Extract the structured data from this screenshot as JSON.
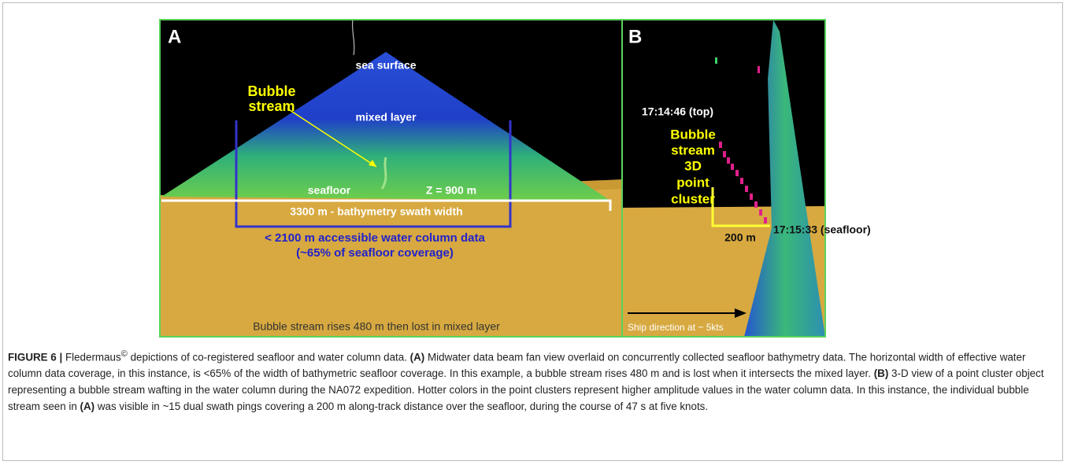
{
  "figure": {
    "panel_a": {
      "letter": "A",
      "sea_surface": "sea surface",
      "bubble_stream": [
        "Bubble",
        "stream"
      ],
      "mixed_layer": "mixed layer",
      "seafloor": "seafloor",
      "depth": "Z = 900 m",
      "swath": "3300 m - bathymetry swath width",
      "accessible": [
        "< 2100 m accessible water column data",
        "(~65% of seafloor coverage)"
      ],
      "footnote": "Bubble stream rises 480 m then lost in mixed layer"
    },
    "panel_b": {
      "letter": "B",
      "top_time": "17:14:46 (top)",
      "cluster": [
        "Bubble",
        "stream",
        "3D",
        "point",
        "cluster"
      ],
      "seafloor_time": "17:15:33 (seafloor)",
      "distance": "200 m",
      "ship": "Ship direction at ~ 5kts"
    },
    "caption": [
      {
        "text": "FIGURE 6 |",
        "bold": true
      },
      {
        "text": " Fledermaus"
      },
      {
        "text": "©",
        "sup": true
      },
      {
        "text": " depictions of co-registered seafloor and water column data. "
      },
      {
        "text": "(A)",
        "bold": true
      },
      {
        "text": " Midwater data beam fan view overlaid on concurrently collected seafloor bathymetry data. The horizontal width of effective water column data coverage, in this instance, is <65% of the width of bathymetric seafloor coverage. In this example, a bubble stream rises 480 m and is lost when it intersects the mixed layer. "
      },
      {
        "text": "(B)",
        "bold": true
      },
      {
        "text": " 3-D view of a point cluster object representing a bubble stream wafting in the water column during the NA072 expedition. Hotter colors in the point clusters represent higher amplitude values in the water column data. In this instance, the individual bubble stream seen in "
      },
      {
        "text": "(A)",
        "bold": true
      },
      {
        "text": " was visible in ~15 dual swath pings covering a 200 m along-track distance over the seafloor, during the course of 47 s at five knots."
      }
    ]
  }
}
